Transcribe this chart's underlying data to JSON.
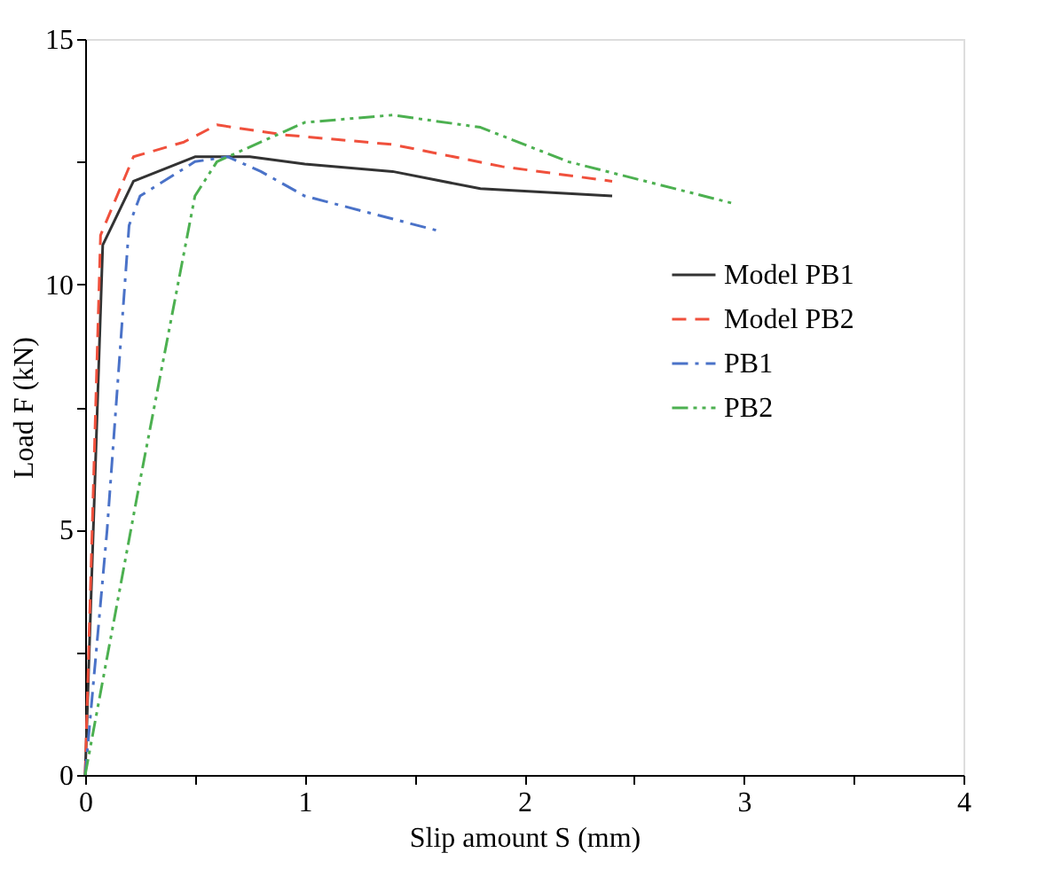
{
  "chart_data": {
    "type": "line",
    "xlabel": "Slip amount S (mm)",
    "ylabel": "Load  F (kN)",
    "xlim": [
      0,
      4
    ],
    "ylim": [
      0,
      15
    ],
    "xticks": [
      0,
      {
        "value": 0.5,
        "label": null
      },
      1,
      {
        "value": 1.5,
        "label": null
      },
      2,
      {
        "value": 2.5,
        "label": null
      },
      3,
      {
        "value": 3.5,
        "label": null
      },
      4
    ],
    "yticks": [
      0,
      {
        "value": 2.5,
        "label": null
      },
      5,
      {
        "value": 7.5,
        "label": null
      },
      10,
      {
        "value": 12.5,
        "label": null
      },
      15
    ],
    "grid": false,
    "legend": "right",
    "marker": "none",
    "series": [
      {
        "name": "Model PB1",
        "color": "#333333",
        "line_style": "solid",
        "x": [
          0,
          0.08,
          0.22,
          0.5,
          0.75,
          1.0,
          1.4,
          1.8,
          2.4
        ],
        "values": [
          0,
          10.8,
          12.1,
          12.6,
          12.6,
          12.45,
          12.3,
          11.95,
          11.8
        ]
      },
      {
        "name": "Model PB2",
        "color": "#f0503c",
        "line_style": "dashed",
        "x": [
          0,
          0.07,
          0.22,
          0.45,
          0.6,
          0.9,
          1.4,
          1.9,
          2.4
        ],
        "values": [
          0,
          11,
          12.6,
          12.9,
          13.25,
          13.05,
          12.85,
          12.4,
          12.1
        ]
      },
      {
        "name": "PB1",
        "color": "#4a72c8",
        "line_style": "dashdot",
        "x": [
          0,
          0.1,
          0.2,
          0.25,
          0.5,
          0.65,
          0.8,
          1.0,
          1.6
        ],
        "values": [
          0,
          5,
          11.2,
          11.8,
          12.5,
          12.6,
          12.3,
          11.8,
          11.1
        ]
      },
      {
        "name": "PB2",
        "color": "#4cb050",
        "line_style": "dashdotdot",
        "x": [
          0,
          0.25,
          0.5,
          0.6,
          1.0,
          1.4,
          1.8,
          2.2,
          2.95
        ],
        "values": [
          0,
          6,
          11.8,
          12.5,
          13.3,
          13.45,
          13.2,
          12.5,
          11.65
        ]
      }
    ]
  }
}
